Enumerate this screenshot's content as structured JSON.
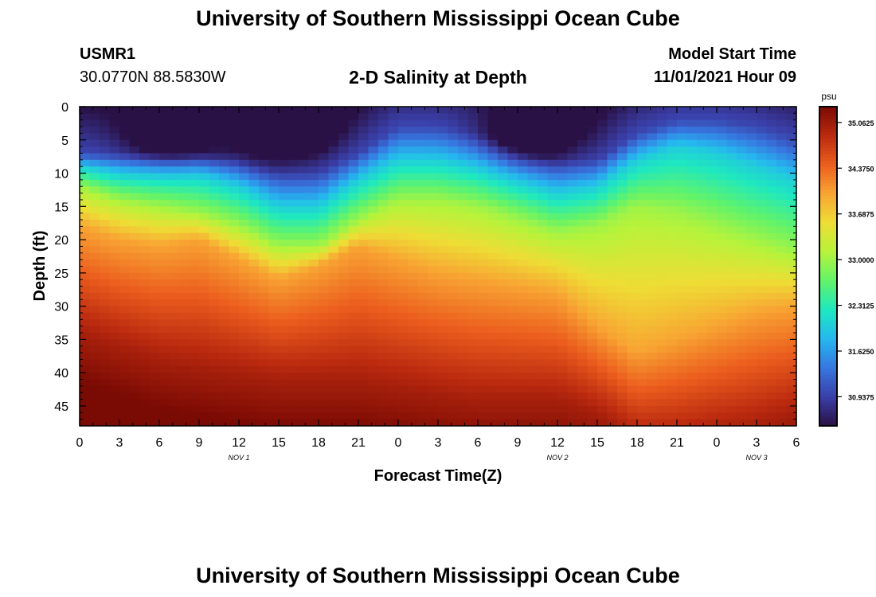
{
  "title": "University of Southern Mississippi Ocean Cube",
  "station": {
    "id": "USMR1",
    "coords": "30.0770N  88.5830W"
  },
  "plot_title": "2-D Salinity at Depth",
  "model": {
    "label": "Model Start Time",
    "time": "11/01/2021 Hour 09"
  },
  "footer_title": "University of Southern Mississippi Ocean Cube",
  "chart_data": {
    "type": "heatmap",
    "title": "2-D Salinity at Depth",
    "xlabel": "Forecast Time(Z)",
    "ylabel": "Depth (ft)",
    "x_tick_labels": [
      "0",
      "3",
      "6",
      "9",
      "12",
      "15",
      "18",
      "21",
      "0",
      "3",
      "6",
      "9",
      "12",
      "15",
      "18",
      "21",
      "0",
      "3",
      "6"
    ],
    "date_labels": [
      {
        "label": "NOV 1",
        "tick_index": 4
      },
      {
        "label": "NOV 2",
        "tick_index": 12
      },
      {
        "label": "NOV 3",
        "tick_index": 17
      }
    ],
    "xlim_hours": [
      0,
      54
    ],
    "y_ticks": [
      0,
      5,
      10,
      15,
      20,
      25,
      30,
      35,
      40,
      45
    ],
    "ylim": [
      0,
      48
    ],
    "y_reversed": true,
    "colorbar": {
      "unit": "psu",
      "min": 30.5,
      "max": 35.3,
      "ticks": [
        "35.0625",
        "34.3750",
        "33.6875",
        "33.0000",
        "32.3125",
        "31.6250",
        "30.9375"
      ]
    },
    "colormap": [
      "#2a1145",
      "#3a3fa8",
      "#3777e0",
      "#25b8ef",
      "#1ee8c0",
      "#62f36a",
      "#b7f33a",
      "#eedd35",
      "#f8a533",
      "#ec5e1e",
      "#bb2a0f",
      "#7a0a04"
    ],
    "isolines_ft": {
      "x_hours": [
        0,
        3,
        6,
        9,
        12,
        15,
        18,
        21,
        24,
        27,
        30,
        33,
        36,
        39,
        42,
        45,
        48,
        51,
        54
      ],
      "s31": [
        7,
        7,
        7,
        7,
        8,
        10,
        10,
        7,
        3,
        3,
        4,
        6,
        8,
        8,
        4,
        2,
        2,
        3,
        5
      ],
      "s32": [
        9,
        10,
        10,
        10,
        12,
        15,
        15,
        11,
        8,
        8,
        9,
        11,
        13,
        12,
        8,
        6,
        7,
        9,
        11
      ],
      "s33": [
        12,
        14,
        15,
        16,
        18,
        21,
        21,
        17,
        14,
        14,
        15,
        17,
        19,
        18,
        15,
        16,
        18,
        20,
        22
      ],
      "s34": [
        18,
        20,
        21,
        20,
        23,
        26,
        24,
        21,
        23,
        25,
        26,
        27,
        28,
        33,
        37,
        35,
        33,
        31,
        30
      ],
      "s35": [
        34,
        36,
        38,
        39,
        40,
        41,
        41,
        41,
        42,
        43,
        44,
        44,
        44,
        46,
        50,
        50,
        49,
        48,
        46
      ],
      "surface_fresh": [
        {
          "x": 7,
          "y": 4,
          "strength": 0.9
        },
        {
          "x": 15,
          "y": 3,
          "strength": 1.3
        },
        {
          "x": 34,
          "y": 4,
          "strength": 0.9
        }
      ]
    }
  }
}
